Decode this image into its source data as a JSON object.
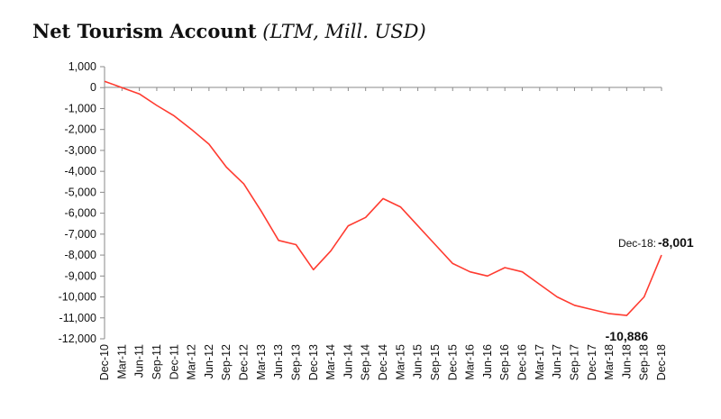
{
  "chart_data": {
    "type": "line",
    "title": "Net Tourism Account",
    "subtitle": "(LTM, Mill. USD)",
    "xlabel": "",
    "ylabel": "",
    "ylim": [
      -12000,
      1000
    ],
    "yticks": [
      1000,
      0,
      -1000,
      -2000,
      -3000,
      -4000,
      -5000,
      -6000,
      -7000,
      -8000,
      -9000,
      -10000,
      -11000,
      -12000
    ],
    "ytick_labels": [
      "1,000",
      "0",
      "-1,000",
      "-2,000",
      "-3,000",
      "-4,000",
      "-5,000",
      "-6,000",
      "-7,000",
      "-8,000",
      "-9,000",
      "-10,000",
      "-11,000",
      "-12,000"
    ],
    "x_tick_labels": [
      "Dec-10",
      "Mar-11",
      "Jun-11",
      "Sep-11",
      "Dec-11",
      "Mar-12",
      "Jun-12",
      "Sep-12",
      "Dec-12",
      "Mar-13",
      "Jun-13",
      "Sep-13",
      "Dec-13",
      "Mar-14",
      "Jun-14",
      "Sep-14",
      "Dec-14",
      "Mar-15",
      "Jun-15",
      "Sep-15",
      "Dec-15",
      "Mar-16",
      "Jun-16",
      "Sep-16",
      "Dec-16",
      "Mar-17",
      "Jun-17",
      "Sep-17",
      "Dec-17",
      "Mar-18",
      "Jun-18",
      "Sep-18",
      "Dec-18"
    ],
    "grid": false,
    "series": [
      {
        "name": "Net Tourism Account",
        "color": "#ff3b30",
        "x": [
          0,
          1,
          2,
          3,
          4,
          5,
          6,
          7,
          8,
          9,
          10,
          11,
          12,
          13,
          14,
          15,
          16,
          17,
          18,
          19,
          20,
          21,
          22,
          23,
          24,
          25,
          26,
          27,
          28,
          29,
          30,
          31,
          32
        ],
        "values": [
          300,
          0,
          -300,
          -850,
          -1350,
          -2000,
          -2700,
          -3800,
          -4600,
          -5900,
          -7300,
          -7500,
          -8700,
          -7800,
          -6600,
          -6200,
          -5300,
          -5700,
          -6600,
          -7500,
          -8400,
          -8800,
          -9000,
          -8600,
          -8800,
          -9400,
          -10000,
          -10400,
          -10600,
          -10800,
          -10886,
          -10000,
          -8001
        ]
      }
    ],
    "annotations": [
      {
        "label": "Dec-18:",
        "value_text": "-8,001",
        "x": 32,
        "y": -8001
      },
      {
        "value_text": "-10,886",
        "x": 30,
        "y": -10886
      }
    ]
  }
}
